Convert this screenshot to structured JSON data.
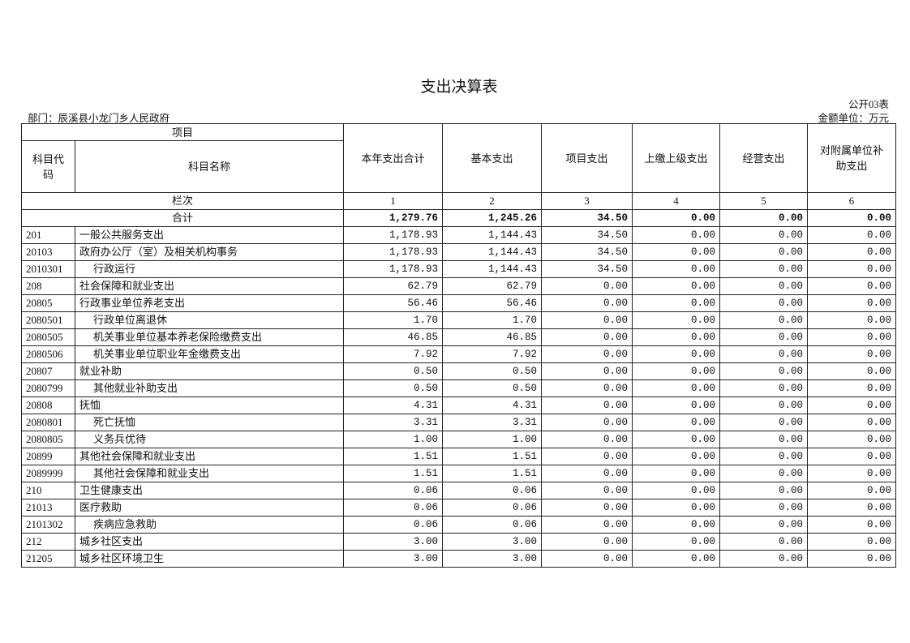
{
  "title": "支出决算表",
  "form_no": "公开03表",
  "department": "部门：辰溪县小龙门乡人民政府",
  "unit": "金额单位：万元",
  "header": {
    "project": "项目",
    "code": "科目代码",
    "name": "科目名称",
    "columns": [
      "本年支出合计",
      "基本支出",
      "项目支出",
      "上缴上级支出",
      "经营支出",
      "对附属单位补助支出"
    ],
    "seq_label": "栏次",
    "seq": [
      "1",
      "2",
      "3",
      "4",
      "5",
      "6"
    ]
  },
  "total": {
    "label": "合计",
    "values": [
      "1,279.76",
      "1,245.26",
      "34.50",
      "0.00",
      "0.00",
      "0.00"
    ]
  },
  "rows": [
    {
      "code": "201",
      "name": "一般公共服务支出",
      "indent": false,
      "values": [
        "1,178.93",
        "1,144.43",
        "34.50",
        "0.00",
        "0.00",
        "0.00"
      ]
    },
    {
      "code": "20103",
      "name": "政府办公厅（室）及相关机构事务",
      "indent": false,
      "values": [
        "1,178.93",
        "1,144.43",
        "34.50",
        "0.00",
        "0.00",
        "0.00"
      ]
    },
    {
      "code": "2010301",
      "name": "行政运行",
      "indent": true,
      "values": [
        "1,178.93",
        "1,144.43",
        "34.50",
        "0.00",
        "0.00",
        "0.00"
      ]
    },
    {
      "code": "208",
      "name": "社会保障和就业支出",
      "indent": false,
      "values": [
        "62.79",
        "62.79",
        "0.00",
        "0.00",
        "0.00",
        "0.00"
      ]
    },
    {
      "code": "20805",
      "name": "行政事业单位养老支出",
      "indent": false,
      "values": [
        "56.46",
        "56.46",
        "0.00",
        "0.00",
        "0.00",
        "0.00"
      ]
    },
    {
      "code": "2080501",
      "name": "行政单位离退休",
      "indent": true,
      "values": [
        "1.70",
        "1.70",
        "0.00",
        "0.00",
        "0.00",
        "0.00"
      ]
    },
    {
      "code": "2080505",
      "name": "机关事业单位基本养老保险缴费支出",
      "indent": true,
      "values": [
        "46.85",
        "46.85",
        "0.00",
        "0.00",
        "0.00",
        "0.00"
      ]
    },
    {
      "code": "2080506",
      "name": "机关事业单位职业年金缴费支出",
      "indent": true,
      "values": [
        "7.92",
        "7.92",
        "0.00",
        "0.00",
        "0.00",
        "0.00"
      ]
    },
    {
      "code": "20807",
      "name": "就业补助",
      "indent": false,
      "values": [
        "0.50",
        "0.50",
        "0.00",
        "0.00",
        "0.00",
        "0.00"
      ]
    },
    {
      "code": "2080799",
      "name": "其他就业补助支出",
      "indent": true,
      "values": [
        "0.50",
        "0.50",
        "0.00",
        "0.00",
        "0.00",
        "0.00"
      ]
    },
    {
      "code": "20808",
      "name": "抚恤",
      "indent": false,
      "values": [
        "4.31",
        "4.31",
        "0.00",
        "0.00",
        "0.00",
        "0.00"
      ]
    },
    {
      "code": "2080801",
      "name": "死亡抚恤",
      "indent": true,
      "values": [
        "3.31",
        "3.31",
        "0.00",
        "0.00",
        "0.00",
        "0.00"
      ]
    },
    {
      "code": "2080805",
      "name": "义务兵优待",
      "indent": true,
      "values": [
        "1.00",
        "1.00",
        "0.00",
        "0.00",
        "0.00",
        "0.00"
      ]
    },
    {
      "code": "20899",
      "name": "其他社会保障和就业支出",
      "indent": false,
      "values": [
        "1.51",
        "1.51",
        "0.00",
        "0.00",
        "0.00",
        "0.00"
      ]
    },
    {
      "code": "2089999",
      "name": "其他社会保障和就业支出",
      "indent": true,
      "values": [
        "1.51",
        "1.51",
        "0.00",
        "0.00",
        "0.00",
        "0.00"
      ]
    },
    {
      "code": "210",
      "name": "卫生健康支出",
      "indent": false,
      "values": [
        "0.06",
        "0.06",
        "0.00",
        "0.00",
        "0.00",
        "0.00"
      ]
    },
    {
      "code": "21013",
      "name": "医疗救助",
      "indent": false,
      "values": [
        "0.06",
        "0.06",
        "0.00",
        "0.00",
        "0.00",
        "0.00"
      ]
    },
    {
      "code": "2101302",
      "name": "疾病应急救助",
      "indent": true,
      "values": [
        "0.06",
        "0.06",
        "0.00",
        "0.00",
        "0.00",
        "0.00"
      ]
    },
    {
      "code": "212",
      "name": "城乡社区支出",
      "indent": false,
      "values": [
        "3.00",
        "3.00",
        "0.00",
        "0.00",
        "0.00",
        "0.00"
      ]
    },
    {
      "code": "21205",
      "name": "城乡社区环境卫生",
      "indent": false,
      "values": [
        "3.00",
        "3.00",
        "0.00",
        "0.00",
        "0.00",
        "0.00"
      ]
    }
  ]
}
